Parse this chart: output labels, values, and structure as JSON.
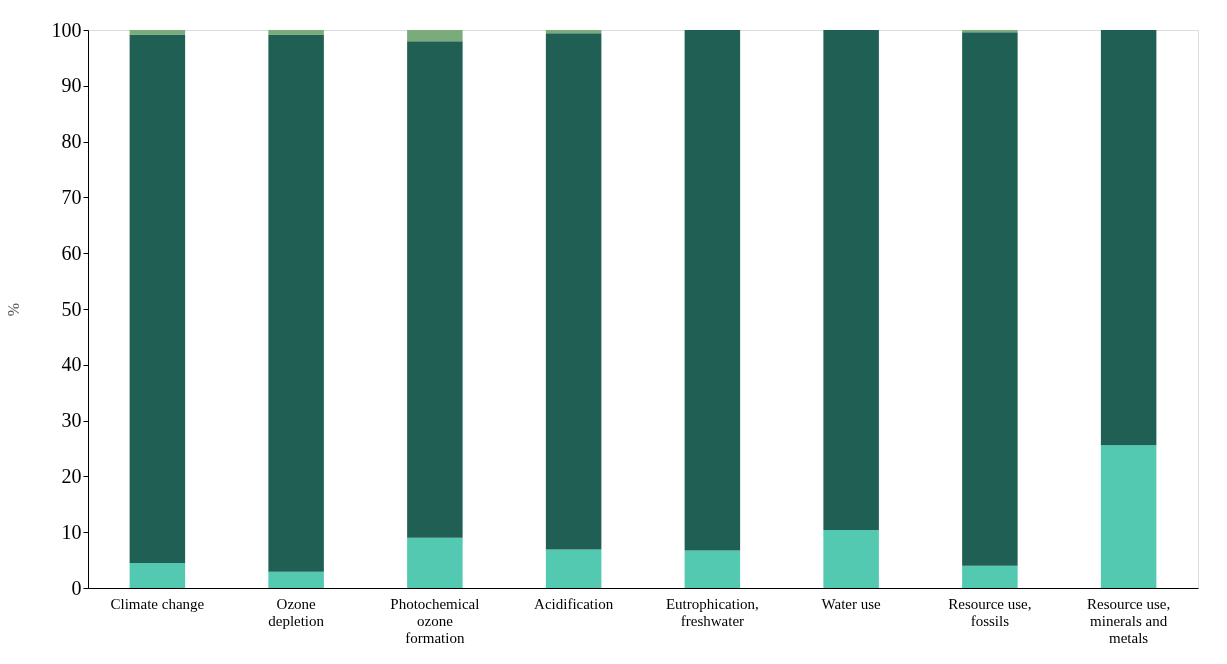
{
  "chart_data": {
    "type": "bar",
    "stacked": true,
    "ylabel": "%",
    "categories": [
      "Climate change",
      "Ozone depletion",
      "Photochemical ozone formation",
      "Acidification",
      "Eutrophication, freshwater",
      "Water use",
      "Resource use, fossils",
      "Resource use, minerals and metals"
    ],
    "series": [
      {
        "color": "#52c9b0",
        "values": [
          4.5,
          2.9,
          9.0,
          6.9,
          6.7,
          10.4,
          4.0,
          25.6
        ]
      },
      {
        "color": "#1f5f54",
        "values": [
          94.7,
          96.3,
          89.0,
          92.5,
          93.3,
          89.6,
          95.6,
          74.4
        ]
      },
      {
        "color": "#7aab7b",
        "values": [
          0.8,
          0.8,
          2.0,
          0.6,
          0,
          0,
          0.4,
          0
        ]
      }
    ],
    "ylim": [
      0,
      100
    ],
    "yticks": [
      0,
      10,
      20,
      30,
      40,
      50,
      60,
      70,
      80,
      90,
      100
    ],
    "grid": false,
    "legend": false
  }
}
